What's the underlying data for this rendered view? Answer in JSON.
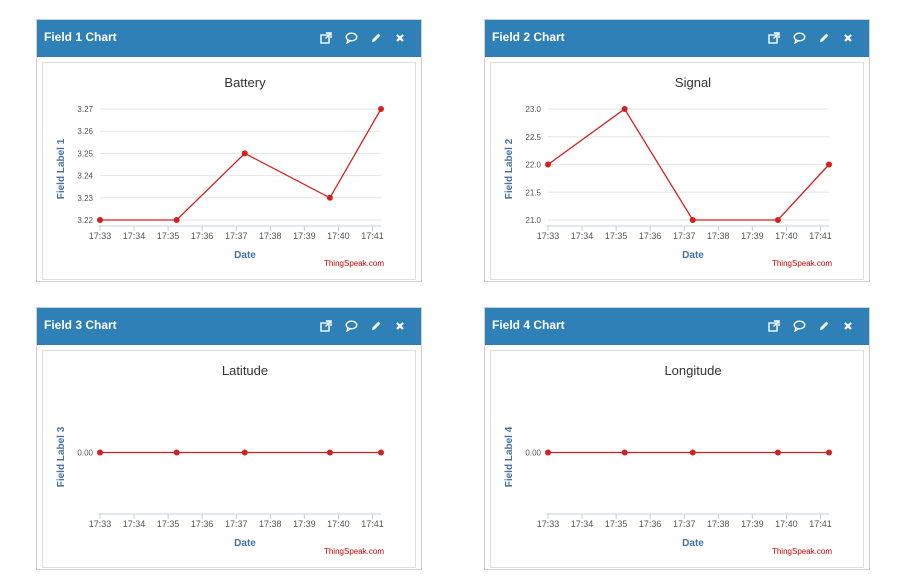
{
  "panels": [
    {
      "header_title": "Field 1 Chart",
      "chart": {
        "type": "line",
        "title": "Battery",
        "ylabel": "Field Label 1",
        "xlabel": "Date",
        "credits": "ThingSpeak.com",
        "y_ticks": [
          "3.22",
          "3.23",
          "3.24",
          "3.25",
          "3.26",
          "3.27"
        ],
        "ylim": [
          3.22,
          3.27
        ],
        "x_ticks": [
          "17:33",
          "17:34",
          "17:35",
          "17:36",
          "17:37",
          "17:38",
          "17:39",
          "17:40",
          "17:41"
        ],
        "series": [
          {
            "x": [
              "17:33",
              "17:35:15",
              "17:37:15",
              "17:39:45",
              "17:41:15"
            ],
            "y": [
              3.22,
              3.22,
              3.25,
              3.23,
              3.27
            ]
          }
        ]
      }
    },
    {
      "header_title": "Field 2 Chart",
      "chart": {
        "type": "line",
        "title": "Signal",
        "ylabel": "Field Label 2",
        "xlabel": "Date",
        "credits": "ThingSpeak.com",
        "y_ticks": [
          "21.0",
          "21.5",
          "22.0",
          "22.5",
          "23.0"
        ],
        "ylim": [
          21,
          23
        ],
        "x_ticks": [
          "17:33",
          "17:34",
          "17:35",
          "17:36",
          "17:37",
          "17:38",
          "17:39",
          "17:40",
          "17:41"
        ],
        "series": [
          {
            "x": [
              "17:33",
              "17:35:15",
              "17:37:15",
              "17:39:45",
              "17:41:15"
            ],
            "y": [
              22,
              23,
              21,
              21,
              22
            ]
          }
        ]
      }
    },
    {
      "header_title": "Field 3 Chart",
      "chart": {
        "type": "line",
        "title": "Latitude",
        "ylabel": "Field Label 3",
        "xlabel": "Date",
        "credits": "ThingSpeak.com",
        "y_ticks": [
          "0.00"
        ],
        "ylim": [
          -1,
          1
        ],
        "x_ticks": [
          "17:33",
          "17:34",
          "17:35",
          "17:36",
          "17:37",
          "17:38",
          "17:39",
          "17:40",
          "17:41"
        ],
        "series": [
          {
            "x": [
              "17:33",
              "17:35:15",
              "17:37:15",
              "17:39:45",
              "17:41:15"
            ],
            "y": [
              0,
              0,
              0,
              0,
              0
            ]
          }
        ]
      }
    },
    {
      "header_title": "Field 4 Chart",
      "chart": {
        "type": "line",
        "title": "Longitude",
        "ylabel": "Field Label 4",
        "xlabel": "Date",
        "credits": "ThingSpeak.com",
        "y_ticks": [
          "0.00"
        ],
        "ylim": [
          -1,
          1
        ],
        "x_ticks": [
          "17:33",
          "17:34",
          "17:35",
          "17:36",
          "17:37",
          "17:38",
          "17:39",
          "17:40",
          "17:41"
        ],
        "series": [
          {
            "x": [
              "17:33",
              "17:35:15",
              "17:37:15",
              "17:39:45",
              "17:41:15"
            ],
            "y": [
              0,
              0,
              0,
              0,
              0
            ]
          }
        ]
      }
    }
  ],
  "icons": [
    "external-link-icon",
    "comment-icon",
    "pencil-icon",
    "close-icon"
  ],
  "colors": {
    "header": "#2f80b6",
    "series": "#d62020",
    "credits": "#cc0000",
    "axis_title": "#4572a7"
  }
}
